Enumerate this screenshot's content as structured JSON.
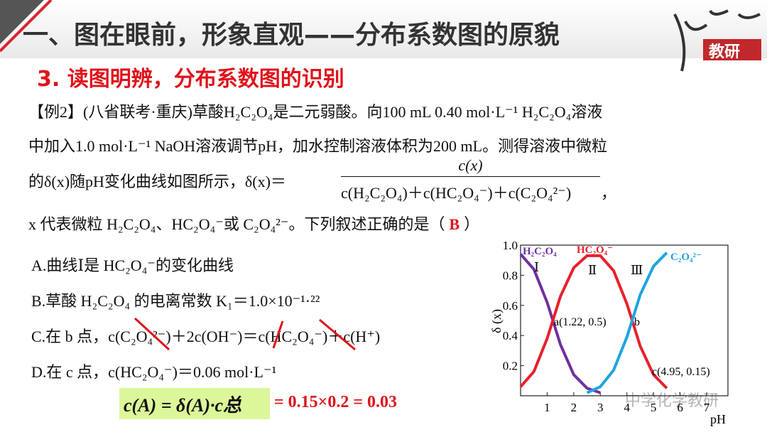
{
  "header": {
    "title": "一、图在眼前，形象直观——分布系数图的原貌",
    "subtitle": "3. 读图明辨，分布系数图的识别",
    "logo": "教研"
  },
  "question": {
    "lines": [
      "【例2】(八省联考·重庆)草酸H₂C₂O₄是二元弱酸。向100 mL 0.40 mol·L⁻¹ H₂C₂O₄溶液",
      "中加入1.0 mol·L⁻¹ NaOH溶液调节pH，加水控制溶液体积为200 mL。测得溶液中微粒"
    ],
    "formula": {
      "lhs": "的δ(x)随pH变化曲线如图所示，δ(x)＝",
      "numerator": "c(x)",
      "denominator": "c(H₂C₂O₄)＋c(HC₂O₄⁻)＋c(C₂O₄²⁻)",
      "tail": "，"
    },
    "last": {
      "text": "x 代表微粒 H₂C₂O₄、HC₂O₄⁻或 C₂O₄²⁻。下列叙述正确的是（",
      "answer": "B",
      "close": "）"
    }
  },
  "options": [
    "A.曲线Ⅰ是 HC₂O₄⁻的变化曲线",
    "B.草酸 H₂C₂O₄ 的电离常数 K₁＝1.0×10⁻¹·²²",
    "C.在 b 点，c(C₂O₄²⁻)＋2c(OH⁻)＝c(HC₂O₄⁻)＋c(H⁺)",
    "D.在 c 点，c(HC₂O₄⁻)＝0.06 mol·L⁻¹"
  ],
  "note": {
    "formula": "c(A) = δ(A)·c总",
    "result": "= 0.15×0.2 = 0.03"
  },
  "watermark": "中学化学教研",
  "chart_data": {
    "type": "line",
    "x_label": "pH",
    "y_label": "δ (x)",
    "x": [
      0,
      0.5,
      1,
      1.5,
      2,
      2.5,
      3,
      3.5,
      4,
      4.5,
      5,
      5.5
    ],
    "series": [
      {
        "name": "H₂C₂O₄",
        "color": "#7030a0",
        "values": [
          0.94,
          0.84,
          0.62,
          0.34,
          0.14,
          0.05,
          0.02,
          null,
          null,
          null,
          null,
          null
        ]
      },
      {
        "name": "HC₂O₄⁻",
        "color": "#e8202a",
        "values": [
          0.06,
          0.16,
          0.38,
          0.66,
          0.85,
          0.93,
          0.93,
          0.83,
          0.61,
          0.33,
          0.14,
          0.05
        ]
      },
      {
        "name": "C₂O₄²⁻",
        "color": "#1ea4e0",
        "values": [
          null,
          null,
          null,
          null,
          null,
          0.02,
          0.06,
          0.17,
          0.39,
          0.67,
          0.86,
          0.95
        ]
      }
    ],
    "curve_labels": [
      "Ⅰ",
      "Ⅱ",
      "Ⅲ"
    ],
    "annotations": [
      "a(1.22, 0.5)",
      "b",
      "c(4.95, 0.15)"
    ],
    "xlim": [
      0,
      7.8
    ],
    "ylim": [
      0,
      1
    ],
    "xticks": [
      1,
      2,
      3,
      4,
      5,
      6,
      7
    ],
    "yticks": [
      0.2,
      0.4,
      0.6,
      0.8,
      {
        "value": 1,
        "label": "1.0"
      }
    ]
  }
}
